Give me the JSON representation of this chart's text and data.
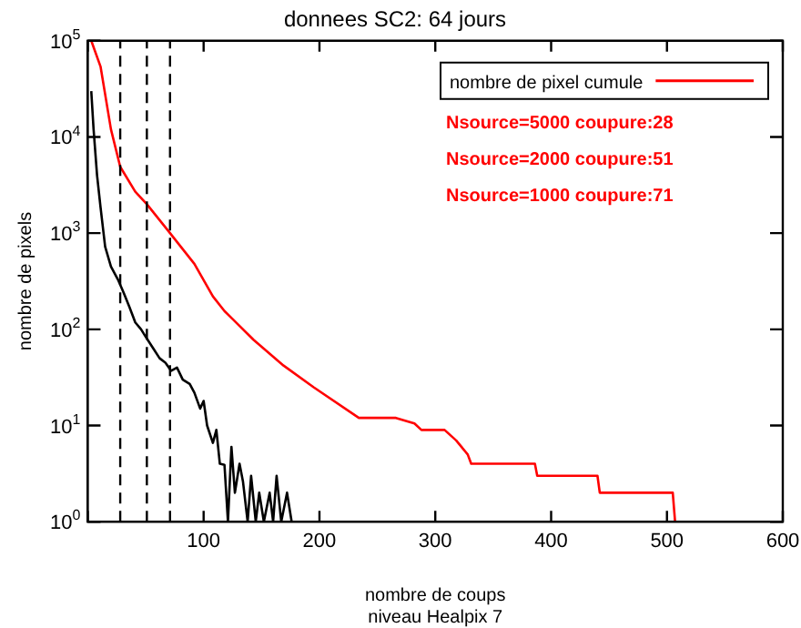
{
  "chart_data": {
    "type": "line",
    "title": "donnees SC2: 64 jours",
    "xlabel": "nombre de coups\nniveau Healpix 7",
    "ylabel": "nombre de pixels",
    "xlim": [
      0,
      600
    ],
    "xticks": [
      {
        "value": 0,
        "label": null
      },
      100,
      200,
      300,
      400,
      500,
      600
    ],
    "ylim": [
      1,
      100000
    ],
    "yticks": [
      {
        "value": 1,
        "label": "10$^{0}$"
      },
      {
        "value": 10,
        "label": "10$^{1}$"
      },
      {
        "value": 100,
        "label": "10$^{2}$"
      },
      {
        "value": 1000,
        "label": "10$^{3}$"
      },
      {
        "value": 10000,
        "label": "10$^{4}$"
      },
      {
        "value": 100000,
        "label": "10$^{5}$"
      }
    ],
    "log": "y",
    "grid": false,
    "legend": "top right",
    "marker": "none",
    "line_style": "solid",
    "series": [
      {
        "name": "nombre de pixel cumule",
        "color": "#ff0000",
        "x": [
          3,
          11,
          20,
          28,
          41,
          51,
          71,
          92,
          108,
          118,
          143,
          169,
          195,
          234,
          266,
          282,
          288,
          308,
          318,
          328,
          331,
          386,
          388,
          440,
          442,
          505,
          507
        ],
        "values": [
          100000,
          54000,
          12000,
          4900,
          2700,
          2000,
          1000,
          480,
          220,
          155,
          78,
          42,
          25,
          12,
          12,
          10.5,
          9,
          9,
          7,
          5,
          4,
          4,
          3,
          3,
          2,
          2,
          1
        ]
      },
      {
        "color": "#000000",
        "x": [
          3,
          5,
          8,
          11,
          15,
          20,
          26,
          31,
          36,
          41,
          46,
          51,
          57,
          62,
          67,
          72,
          77,
          82,
          88,
          92,
          97,
          100,
          103,
          108,
          111,
          114,
          118,
          121,
          124,
          127,
          131,
          134,
          138,
          141,
          145,
          148,
          152,
          157,
          160,
          163,
          167,
          172,
          176,
          180
        ],
        "values": [
          30000,
          12000,
          4000,
          1860,
          720,
          450,
          330,
          240,
          170,
          118,
          100,
          80,
          62,
          50,
          45,
          37,
          40,
          30,
          27,
          22,
          15,
          18,
          10,
          6.6,
          9,
          4,
          3.9,
          1,
          6,
          2,
          4,
          2.6,
          1,
          3,
          1,
          2,
          1,
          2,
          1,
          3,
          1,
          2,
          1,
          1
        ]
      }
    ],
    "ref_lines": [
      {
        "axis": "x",
        "value": 28,
        "color": "#000000",
        "line_style": "dashed"
      },
      {
        "axis": "x",
        "value": 51,
        "color": "#000000",
        "line_style": "dashed"
      },
      {
        "axis": "x",
        "value": 71,
        "color": "#000000",
        "line_style": "dashed"
      }
    ],
    "annotations": [
      "Nsource=5000 coupure:28",
      "Nsource=2000 coupure:51",
      "Nsource=1000 coupure:71"
    ]
  }
}
